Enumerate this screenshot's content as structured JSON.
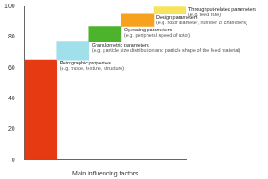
{
  "chart_data": {
    "type": "waterfall",
    "categories": [
      "Petrographic properties",
      "Granulometric parameters",
      "Operating parameters",
      "Design parameters",
      "Throughput-related parameters"
    ],
    "annotations": [
      "(e.g. mode, texture, structure)",
      "(e.g. particle size distribution and particle shape of the feed material)",
      "(e.g. peripheral speed of rotor)",
      "(e.g. rotor diameter, number of chambers)",
      "(e.g. feed rate)"
    ],
    "values": [
      65,
      12,
      10,
      8,
      5
    ],
    "colors": [
      "#e63a12",
      "#9fe0ea",
      "#4db32d",
      "#f7a21e",
      "#f8e45c"
    ],
    "x_label": "Main influencing factors",
    "ylim": [
      0,
      100
    ],
    "yticks": [
      0,
      20,
      40,
      60,
      80,
      100
    ],
    "grid": false,
    "tick_labels": "y",
    "data_labels": false
  }
}
